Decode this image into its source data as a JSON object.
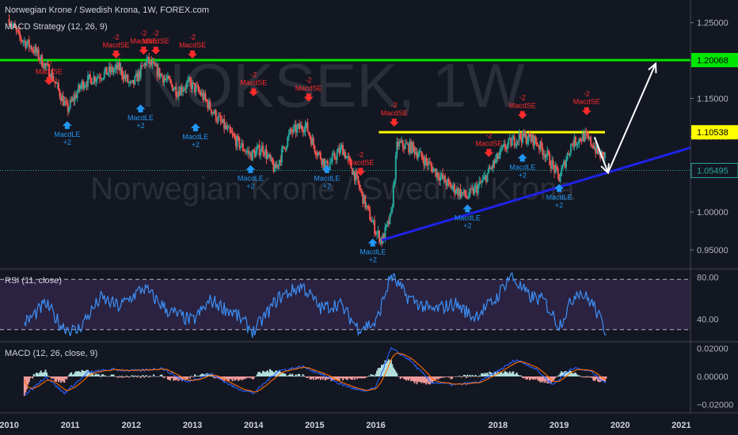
{
  "header": {
    "title": "Norwegian Krone / Swedish Krona, 1W, FOREX.com",
    "strategy": "MACD Strategy (12, 26, 9)",
    "rsi": "RSI (11, close)",
    "macd": "MACD (12, 26, close, 9)"
  },
  "watermark": {
    "symbol": "NOKSEK, 1W",
    "name": "Norwegian Krone / Swedish Krona"
  },
  "colors": {
    "background": "#131722",
    "up": "#26a69a",
    "down": "#ef5350",
    "green_line": "#00e600",
    "yellow_line": "#ffff00",
    "trend_line": "#1f22e8",
    "buy": "#2196f3",
    "sell": "#ff2b2b",
    "rsi_line": "#3d8ff5",
    "rsi_band": "#2a2240",
    "macd_line": "#2962ff",
    "signal_line": "#ff6d00"
  },
  "chart_data": [
    {
      "type": "candlestick",
      "panel": "price",
      "ylim": [
        0.925,
        1.28
      ],
      "xlim": [
        2009.85,
        2021.15
      ],
      "y_ticks": [
        "1.25000",
        "1.20000",
        "1.15000",
        "1.10000",
        "1.05000",
        "1.00000",
        "0.95000"
      ],
      "x_ticks": [
        "2010",
        "2011",
        "2012",
        "2013",
        "2014",
        "2015",
        "2016",
        "2018",
        "2019",
        "2020",
        "2021"
      ],
      "price_badges": [
        {
          "label": "1.20068",
          "value": 1.20068,
          "bg": "#00e600",
          "fg": "#000000"
        },
        {
          "label": "1.10538",
          "value": 1.10538,
          "bg": "#ffff00",
          "fg": "#000000"
        },
        {
          "label": "1.05495",
          "value": 1.05495,
          "bg": "#131722",
          "fg": "#26a69a"
        }
      ],
      "horizontal_lines": [
        {
          "value": 1.2007,
          "x_from": 2009.85,
          "x_to": 2021.15,
          "color": "green"
        },
        {
          "value": 1.1055,
          "x_from": 2016.05,
          "x_to": 2019.75,
          "color": "yellow"
        }
      ],
      "trend_line": {
        "from": [
          2016.1,
          0.963
        ],
        "to": [
          2021.15,
          1.085
        ]
      },
      "arrows": [
        {
          "from": [
            2019.58,
            1.099
          ],
          "to": [
            2019.8,
            1.052
          ]
        },
        {
          "from": [
            2019.8,
            1.052
          ],
          "to": [
            2020.58,
            1.196
          ]
        }
      ],
      "anchors": [
        [
          2010.0,
          1.255
        ],
        [
          2010.15,
          1.232
        ],
        [
          2010.4,
          1.215
        ],
        [
          2010.7,
          1.18
        ],
        [
          2010.95,
          1.135
        ],
        [
          2011.2,
          1.17
        ],
        [
          2011.45,
          1.18
        ],
        [
          2011.8,
          1.19
        ],
        [
          2012.0,
          1.165
        ],
        [
          2012.25,
          1.2
        ],
        [
          2012.5,
          1.18
        ],
        [
          2012.75,
          1.16
        ],
        [
          2012.95,
          1.17
        ],
        [
          2013.15,
          1.155
        ],
        [
          2013.4,
          1.125
        ],
        [
          2013.7,
          1.095
        ],
        [
          2013.95,
          1.075
        ],
        [
          2014.15,
          1.085
        ],
        [
          2014.35,
          1.055
        ],
        [
          2014.6,
          1.105
        ],
        [
          2014.85,
          1.115
        ],
        [
          2015.0,
          1.085
        ],
        [
          2015.2,
          1.06
        ],
        [
          2015.45,
          1.085
        ],
        [
          2015.65,
          1.05
        ],
        [
          2015.85,
          1.005
        ],
        [
          2016.0,
          0.975
        ],
        [
          2016.1,
          0.962
        ],
        [
          2016.25,
          0.995
        ],
        [
          2016.35,
          1.09
        ],
        [
          2016.6,
          1.085
        ],
        [
          2016.9,
          1.06
        ],
        [
          2017.2,
          1.035
        ],
        [
          2017.5,
          1.02
        ],
        [
          2017.75,
          1.04
        ],
        [
          2017.9,
          1.06
        ],
        [
          2018.1,
          1.085
        ],
        [
          2018.35,
          1.1
        ],
        [
          2018.6,
          1.095
        ],
        [
          2018.8,
          1.075
        ],
        [
          2019.0,
          1.045
        ],
        [
          2019.2,
          1.09
        ],
        [
          2019.4,
          1.1
        ],
        [
          2019.55,
          1.09
        ],
        [
          2019.65,
          1.075
        ]
      ],
      "signals": [
        {
          "x": 2010.65,
          "y": 1.17,
          "kind": "short",
          "label": "MacdSE",
          "qty": "-2"
        },
        {
          "x": 2011.75,
          "y": 1.205,
          "kind": "short",
          "label": "MacdSE",
          "qty": "-2"
        },
        {
          "x": 2012.2,
          "y": 1.21,
          "kind": "short",
          "label": "MacdSE",
          "qty": "-2"
        },
        {
          "x": 2012.4,
          "y": 1.21,
          "kind": "short",
          "label": "MacdSE",
          "qty": "-2"
        },
        {
          "x": 2013.0,
          "y": 1.205,
          "kind": "short",
          "label": "MacdSE",
          "qty": "-2"
        },
        {
          "x": 2014.0,
          "y": 1.155,
          "kind": "short",
          "label": "MacdSE",
          "qty": "-2"
        },
        {
          "x": 2014.9,
          "y": 1.148,
          "kind": "short",
          "label": "MacdSE",
          "qty": "-2"
        },
        {
          "x": 2015.75,
          "y": 1.05,
          "kind": "short",
          "label": "MacdSE",
          "qty": "-2"
        },
        {
          "x": 2016.3,
          "y": 1.115,
          "kind": "short",
          "label": "MacdSE",
          "qty": "-2"
        },
        {
          "x": 2017.85,
          "y": 1.075,
          "kind": "short",
          "label": "MacdSE",
          "qty": "-2"
        },
        {
          "x": 2018.4,
          "y": 1.125,
          "kind": "short",
          "label": "MacdSE",
          "qty": "-2"
        },
        {
          "x": 2019.45,
          "y": 1.13,
          "kind": "short",
          "label": "MacdSE",
          "qty": "-2"
        },
        {
          "x": 2010.95,
          "y": 1.118,
          "kind": "long",
          "label": "MacdLE",
          "qty": "+2"
        },
        {
          "x": 2012.15,
          "y": 1.14,
          "kind": "long",
          "label": "MacdLE",
          "qty": "+2"
        },
        {
          "x": 2013.05,
          "y": 1.115,
          "kind": "long",
          "label": "MacdLE",
          "qty": "+2"
        },
        {
          "x": 2013.95,
          "y": 1.06,
          "kind": "long",
          "label": "MacdLE",
          "qty": "+2"
        },
        {
          "x": 2015.2,
          "y": 1.06,
          "kind": "long",
          "label": "MacdLE",
          "qty": "+2"
        },
        {
          "x": 2015.95,
          "y": 0.963,
          "kind": "long",
          "label": "MacdLE",
          "qty": "+2"
        },
        {
          "x": 2017.5,
          "y": 1.008,
          "kind": "long",
          "label": "MacdLE",
          "qty": "+2"
        },
        {
          "x": 2018.4,
          "y": 1.075,
          "kind": "long",
          "label": "MacdLE",
          "qty": "+2"
        },
        {
          "x": 2019.0,
          "y": 1.035,
          "kind": "long",
          "label": "MacdLE",
          "qty": "+2"
        }
      ]
    },
    {
      "type": "line",
      "panel": "rsi",
      "ylim": [
        20,
        88
      ],
      "y_ticks": [
        "80.00",
        "40.00"
      ],
      "band": [
        30,
        78
      ],
      "anchors": [
        [
          2010.3,
          38
        ],
        [
          2010.6,
          55
        ],
        [
          2010.85,
          34
        ],
        [
          2011.1,
          28
        ],
        [
          2011.5,
          60
        ],
        [
          2011.8,
          52
        ],
        [
          2012.2,
          70
        ],
        [
          2012.6,
          48
        ],
        [
          2013.0,
          38
        ],
        [
          2013.3,
          58
        ],
        [
          2013.7,
          45
        ],
        [
          2014.0,
          28
        ],
        [
          2014.4,
          60
        ],
        [
          2014.8,
          72
        ],
        [
          2015.1,
          50
        ],
        [
          2015.4,
          55
        ],
        [
          2015.7,
          32
        ],
        [
          2016.0,
          36
        ],
        [
          2016.25,
          82
        ],
        [
          2016.5,
          62
        ],
        [
          2016.9,
          48
        ],
        [
          2017.3,
          55
        ],
        [
          2017.6,
          42
        ],
        [
          2017.95,
          58
        ],
        [
          2018.2,
          82
        ],
        [
          2018.5,
          62
        ],
        [
          2018.75,
          58
        ],
        [
          2019.0,
          34
        ],
        [
          2019.3,
          68
        ],
        [
          2019.55,
          55
        ],
        [
          2019.75,
          30
        ]
      ]
    },
    {
      "type": "line",
      "panel": "macd",
      "ylim": [
        -0.026,
        0.026
      ],
      "y_ticks": [
        "0.02000",
        "0.00000",
        "−0.02000"
      ],
      "anchors": [
        [
          2010.3,
          -0.012
        ],
        [
          2010.6,
          0.0
        ],
        [
          2010.9,
          -0.012
        ],
        [
          2011.3,
          0.003
        ],
        [
          2011.7,
          0.005
        ],
        [
          2012.1,
          0.004
        ],
        [
          2012.5,
          0.006
        ],
        [
          2012.9,
          -0.004
        ],
        [
          2013.3,
          0.002
        ],
        [
          2013.7,
          -0.008
        ],
        [
          2014.0,
          -0.012
        ],
        [
          2014.4,
          0.004
        ],
        [
          2014.8,
          0.007
        ],
        [
          2015.1,
          0.002
        ],
        [
          2015.4,
          -0.005
        ],
        [
          2015.8,
          -0.011
        ],
        [
          2016.0,
          -0.008
        ],
        [
          2016.25,
          0.02
        ],
        [
          2016.55,
          0.012
        ],
        [
          2016.9,
          -0.004
        ],
        [
          2017.3,
          -0.006
        ],
        [
          2017.7,
          -0.004
        ],
        [
          2018.0,
          0.004
        ],
        [
          2018.3,
          0.012
        ],
        [
          2018.6,
          0.006
        ],
        [
          2018.9,
          -0.006
        ],
        [
          2019.2,
          0.006
        ],
        [
          2019.5,
          0.004
        ],
        [
          2019.75,
          -0.004
        ]
      ]
    }
  ]
}
